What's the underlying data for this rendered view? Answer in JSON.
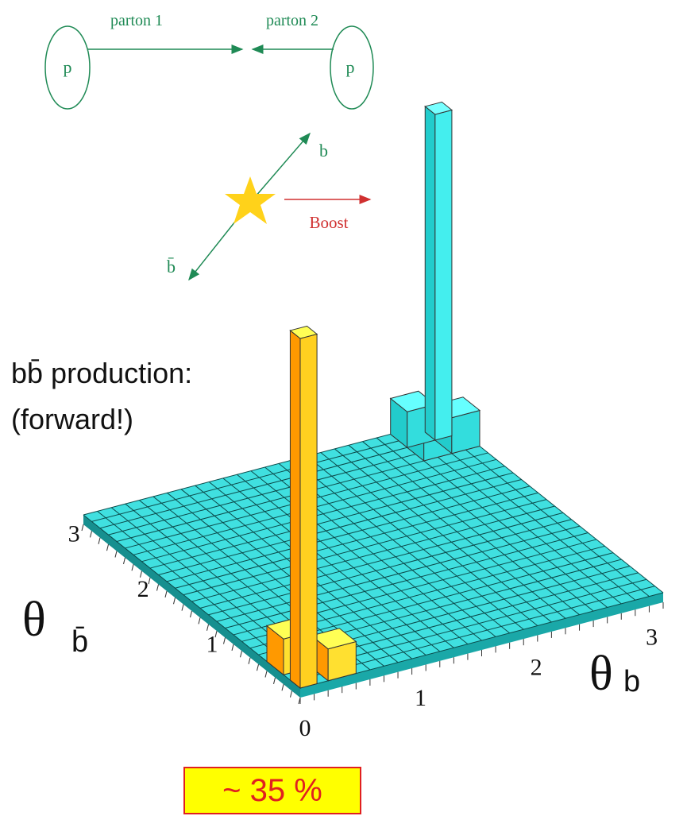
{
  "sketch": {
    "partons": [
      "parton 1",
      "parton 2"
    ],
    "protons": [
      "p",
      "p"
    ],
    "quarks": [
      "b",
      "b̄"
    ],
    "boost": "Boost"
  },
  "plot": {
    "caption": [
      "bb̄ production:",
      "(forward!)"
    ],
    "x_axis_label": {
      "symbol": "θ",
      "subscript": "b"
    },
    "y_axis_label": {
      "symbol": "θ",
      "subscript": "b̄"
    },
    "x_ticks": [
      "0",
      "1",
      "2",
      "3"
    ],
    "y_ticks": [
      "1",
      "2",
      "3"
    ],
    "fraction_label": "~ 35 %"
  }
}
